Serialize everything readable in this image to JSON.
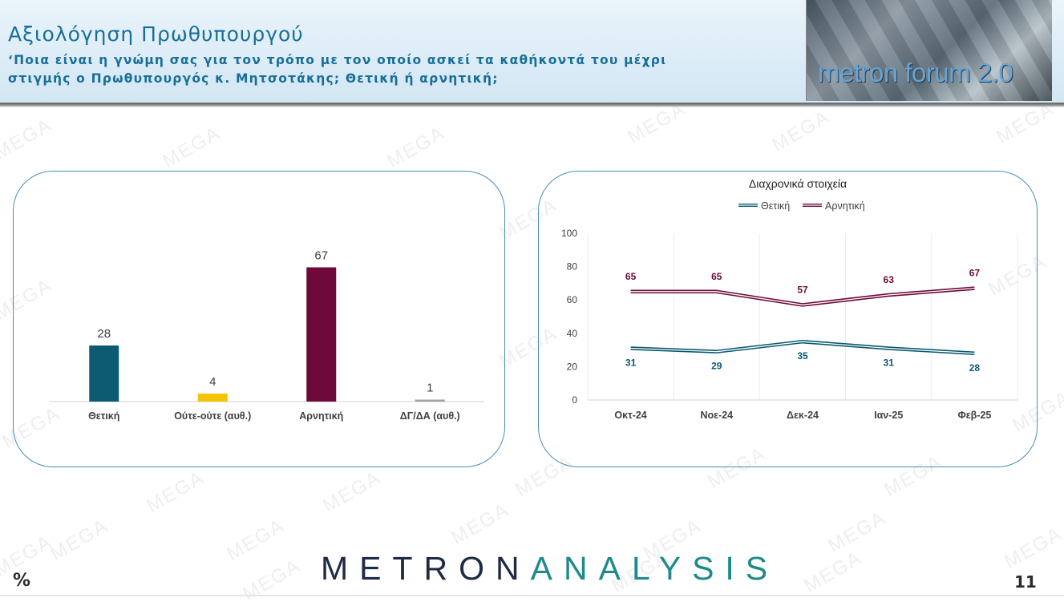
{
  "header": {
    "title": "Αξιολόγηση Πρωθυπουργού",
    "subtitle": "‘Ποια είναι η γνώμη σας για τον τρόπο με τον οποίο ασκεί τα καθήκοντά του μέχρι στιγμής ο Πρωθυπουργός κ. Μητσοτάκης; Θετική ή αρνητική;",
    "logo_text": "metron forum 2.0"
  },
  "watermark_text": "MEGA",
  "chart_data": [
    {
      "type": "bar",
      "categories": [
        "Θετική",
        "Ούτε-ούτε (αυθ.)",
        "Αρνητική",
        "ΔΓ/ΔΑ (αυθ.)"
      ],
      "values": [
        28,
        4,
        67,
        1
      ],
      "colors": [
        "#0b5a72",
        "#f5c400",
        "#6e0a3a",
        "#a0a0a0"
      ],
      "title": "",
      "ylim": [
        0,
        80
      ]
    },
    {
      "type": "line",
      "title": "Διαχρονικά στοιχεία",
      "categories": [
        "Οκτ-24",
        "Νοε-24",
        "Δεκ-24",
        "Ιαν-25",
        "Φεβ-25"
      ],
      "yticks": [
        "100",
        "80",
        "60",
        "40",
        "20",
        "0"
      ],
      "ylim": [
        0,
        100
      ],
      "grid": "vertical",
      "legend_position": "top",
      "series": [
        {
          "name": "Θετική",
          "values": [
            31,
            29,
            35,
            31,
            28
          ],
          "color": "#0b5a72"
        },
        {
          "name": "Αρνητική",
          "values": [
            65,
            65,
            57,
            63,
            67
          ],
          "color": "#6e0a3a"
        }
      ]
    }
  ],
  "footer": {
    "brand_a": "METRON",
    "brand_b": "ANALYSIS",
    "percent_sign": "%",
    "page_number": "11"
  }
}
